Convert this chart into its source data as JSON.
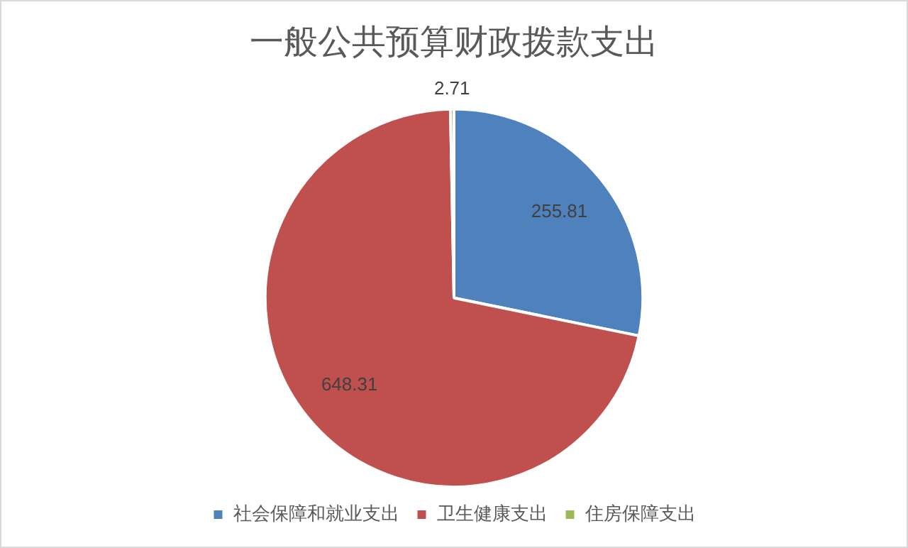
{
  "chart_data": {
    "type": "pie",
    "title": "一般公共预算财政拨款支出",
    "categories": [
      "社会保障和就业支出",
      "卫生健康支出",
      "住房保障支出"
    ],
    "values": [
      255.81,
      648.31,
      2.71
    ],
    "colors": [
      "#4f81bd",
      "#c0504d",
      "#9bbb59"
    ],
    "data_labels": true,
    "legend": "bottom"
  }
}
